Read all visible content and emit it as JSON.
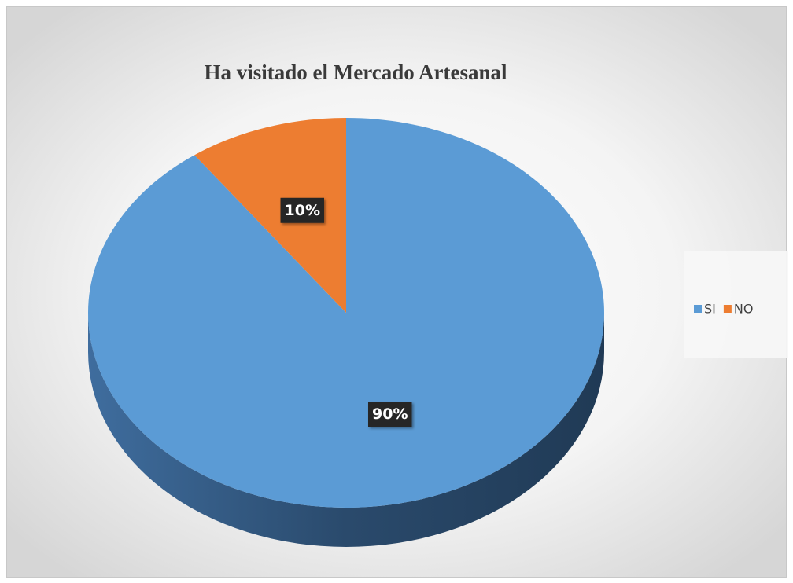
{
  "chart_data": {
    "type": "pie",
    "title": "Ha visitado el Mercado Artesanal",
    "categories": [
      "SI",
      "NO"
    ],
    "values": [
      90,
      10
    ],
    "value_labels": [
      "90%",
      "10%"
    ],
    "colors": [
      "#5b9bd5",
      "#ed7d31"
    ],
    "legend": "right"
  }
}
